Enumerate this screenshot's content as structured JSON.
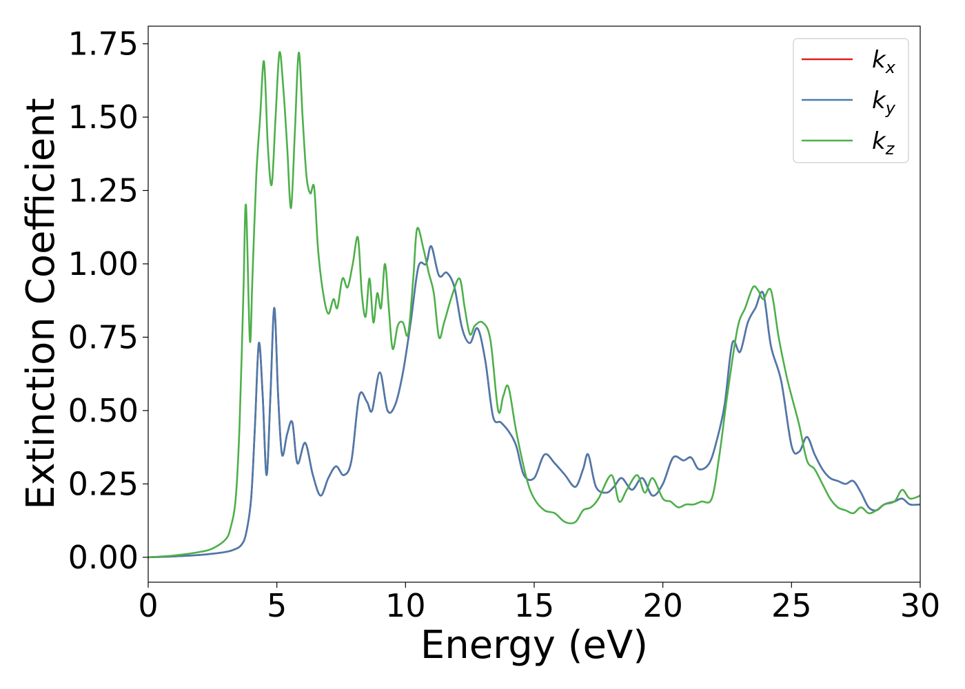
{
  "chart_data": {
    "type": "line",
    "title": "",
    "xlabel": "Energy (eV)",
    "ylabel": "Extinction Coefficient",
    "xlim": [
      0,
      30
    ],
    "ylim": [
      -0.085,
      1.81
    ],
    "xticks": [
      0,
      5,
      10,
      15,
      20,
      25,
      30
    ],
    "xtick_labels": [
      "0",
      "5",
      "10",
      "15",
      "20",
      "25",
      "30"
    ],
    "yticks": [
      0,
      0.25,
      0.5,
      0.75,
      1.0,
      1.25,
      1.5,
      1.75
    ],
    "ytick_labels": [
      "0.00",
      "0.25",
      "0.50",
      "0.75",
      "1.00",
      "1.25",
      "1.50",
      "1.75"
    ],
    "grid": false,
    "legend_position": "top-right",
    "series": [
      {
        "name": "k_x",
        "label_main": "k",
        "label_sub": "x",
        "color": "#e41a1c",
        "x": [
          0,
          1,
          2,
          2.5,
          3,
          3.3,
          3.6,
          3.8,
          4.0,
          4.15,
          4.3,
          4.45,
          4.6,
          4.75,
          4.9,
          5.05,
          5.2,
          5.4,
          5.6,
          5.8,
          6.1,
          6.4,
          6.7,
          7.0,
          7.3,
          7.6,
          7.9,
          8.2,
          8.5,
          8.7,
          9.0,
          9.3,
          9.6,
          9.9,
          10.2,
          10.5,
          10.8,
          11.0,
          11.3,
          11.6,
          11.9,
          12.2,
          12.5,
          12.8,
          13.1,
          13.4,
          13.7,
          14.0,
          14.3,
          14.6,
          15.0,
          15.4,
          15.8,
          16.2,
          16.6,
          16.9,
          17.1,
          17.4,
          17.8,
          18.1,
          18.4,
          18.8,
          19.2,
          19.6,
          20.0,
          20.4,
          20.8,
          21.1,
          21.4,
          21.8,
          22.1,
          22.4,
          22.7,
          23.0,
          23.3,
          23.6,
          23.9,
          24.2,
          24.6,
          25.0,
          25.3,
          25.6,
          25.9,
          26.2,
          26.5,
          26.8,
          27.1,
          27.4,
          27.7,
          28.0,
          28.3,
          28.6,
          29.0,
          29.3,
          29.6,
          30.0
        ],
        "y": [
          0.0,
          0.003,
          0.008,
          0.012,
          0.018,
          0.025,
          0.04,
          0.08,
          0.2,
          0.45,
          0.73,
          0.55,
          0.28,
          0.55,
          0.85,
          0.55,
          0.35,
          0.42,
          0.46,
          0.32,
          0.39,
          0.28,
          0.21,
          0.27,
          0.31,
          0.28,
          0.33,
          0.55,
          0.53,
          0.5,
          0.63,
          0.5,
          0.52,
          0.63,
          0.8,
          0.99,
          1.0,
          1.06,
          0.96,
          0.97,
          0.92,
          0.78,
          0.73,
          0.78,
          0.67,
          0.48,
          0.46,
          0.43,
          0.38,
          0.28,
          0.27,
          0.35,
          0.32,
          0.28,
          0.24,
          0.3,
          0.35,
          0.24,
          0.22,
          0.24,
          0.27,
          0.23,
          0.27,
          0.21,
          0.25,
          0.34,
          0.33,
          0.34,
          0.3,
          0.32,
          0.4,
          0.52,
          0.73,
          0.7,
          0.8,
          0.85,
          0.9,
          0.72,
          0.6,
          0.38,
          0.36,
          0.41,
          0.35,
          0.3,
          0.27,
          0.26,
          0.25,
          0.26,
          0.22,
          0.17,
          0.16,
          0.18,
          0.19,
          0.2,
          0.18,
          0.18
        ]
      },
      {
        "name": "k_y",
        "label_main": "k",
        "label_sub": "y",
        "color": "#4a7aad",
        "x": [
          0,
          1,
          2,
          2.5,
          3,
          3.3,
          3.6,
          3.8,
          4.0,
          4.15,
          4.3,
          4.45,
          4.6,
          4.75,
          4.9,
          5.05,
          5.2,
          5.4,
          5.6,
          5.8,
          6.1,
          6.4,
          6.7,
          7.0,
          7.3,
          7.6,
          7.9,
          8.2,
          8.5,
          8.7,
          9.0,
          9.3,
          9.6,
          9.9,
          10.2,
          10.5,
          10.8,
          11.0,
          11.3,
          11.6,
          11.9,
          12.2,
          12.5,
          12.8,
          13.1,
          13.4,
          13.7,
          14.0,
          14.3,
          14.6,
          15.0,
          15.4,
          15.8,
          16.2,
          16.6,
          16.9,
          17.1,
          17.4,
          17.8,
          18.1,
          18.4,
          18.8,
          19.2,
          19.6,
          20.0,
          20.4,
          20.8,
          21.1,
          21.4,
          21.8,
          22.1,
          22.4,
          22.7,
          23.0,
          23.3,
          23.6,
          23.9,
          24.2,
          24.6,
          25.0,
          25.3,
          25.6,
          25.9,
          26.2,
          26.5,
          26.8,
          27.1,
          27.4,
          27.7,
          28.0,
          28.3,
          28.6,
          29.0,
          29.3,
          29.6,
          30.0
        ],
        "y": [
          0.0,
          0.003,
          0.008,
          0.012,
          0.018,
          0.025,
          0.04,
          0.08,
          0.2,
          0.45,
          0.73,
          0.55,
          0.28,
          0.55,
          0.85,
          0.55,
          0.35,
          0.42,
          0.46,
          0.32,
          0.39,
          0.28,
          0.21,
          0.27,
          0.31,
          0.28,
          0.33,
          0.55,
          0.53,
          0.5,
          0.63,
          0.5,
          0.52,
          0.63,
          0.8,
          0.99,
          1.0,
          1.06,
          0.96,
          0.97,
          0.92,
          0.78,
          0.73,
          0.78,
          0.67,
          0.48,
          0.46,
          0.43,
          0.38,
          0.28,
          0.27,
          0.35,
          0.32,
          0.28,
          0.24,
          0.3,
          0.35,
          0.24,
          0.22,
          0.24,
          0.27,
          0.23,
          0.27,
          0.21,
          0.25,
          0.34,
          0.33,
          0.34,
          0.3,
          0.32,
          0.4,
          0.52,
          0.73,
          0.7,
          0.8,
          0.85,
          0.9,
          0.72,
          0.6,
          0.38,
          0.36,
          0.41,
          0.35,
          0.3,
          0.27,
          0.26,
          0.25,
          0.26,
          0.22,
          0.17,
          0.16,
          0.18,
          0.19,
          0.2,
          0.18,
          0.18
        ]
      },
      {
        "name": "k_z",
        "label_main": "k",
        "label_sub": "z",
        "color": "#4daf4a",
        "x": [
          0,
          1,
          2,
          2.5,
          3,
          3.2,
          3.4,
          3.55,
          3.7,
          3.8,
          3.95,
          4.05,
          4.2,
          4.35,
          4.5,
          4.65,
          4.8,
          4.95,
          5.1,
          5.25,
          5.4,
          5.55,
          5.7,
          5.85,
          6.0,
          6.15,
          6.3,
          6.45,
          6.6,
          6.8,
          7.0,
          7.2,
          7.35,
          7.55,
          7.75,
          7.95,
          8.15,
          8.3,
          8.45,
          8.6,
          8.75,
          8.9,
          9.05,
          9.2,
          9.35,
          9.5,
          9.7,
          9.9,
          10.1,
          10.3,
          10.45,
          10.7,
          10.9,
          11.1,
          11.3,
          11.5,
          11.8,
          12.1,
          12.3,
          12.5,
          12.7,
          13.0,
          13.3,
          13.6,
          13.8,
          14.0,
          14.3,
          14.7,
          15.0,
          15.4,
          15.8,
          16.2,
          16.6,
          16.9,
          17.2,
          17.5,
          18.0,
          18.3,
          18.6,
          19.0,
          19.3,
          19.6,
          20.0,
          20.3,
          20.6,
          20.9,
          21.2,
          21.5,
          21.9,
          22.2,
          22.5,
          22.9,
          23.2,
          23.5,
          23.7,
          23.9,
          24.2,
          24.5,
          24.8,
          25.0,
          25.3,
          25.6,
          25.9,
          26.2,
          26.5,
          26.8,
          27.1,
          27.4,
          27.7,
          28.0,
          28.3,
          28.6,
          29.0,
          29.3,
          29.6,
          30.0
        ],
        "y": [
          0.0,
          0.006,
          0.018,
          0.03,
          0.06,
          0.1,
          0.2,
          0.45,
          0.9,
          1.2,
          0.74,
          0.95,
          1.3,
          1.5,
          1.69,
          1.4,
          1.27,
          1.5,
          1.72,
          1.6,
          1.4,
          1.19,
          1.45,
          1.72,
          1.5,
          1.3,
          1.24,
          1.26,
          1.05,
          0.9,
          0.83,
          0.88,
          0.85,
          0.95,
          0.92,
          1.0,
          1.09,
          0.9,
          0.82,
          0.95,
          0.8,
          0.9,
          0.85,
          1.0,
          0.85,
          0.71,
          0.79,
          0.8,
          0.76,
          0.95,
          1.12,
          1.05,
          0.97,
          0.9,
          0.75,
          0.8,
          0.89,
          0.95,
          0.85,
          0.76,
          0.79,
          0.8,
          0.74,
          0.5,
          0.55,
          0.58,
          0.43,
          0.27,
          0.2,
          0.16,
          0.15,
          0.12,
          0.12,
          0.16,
          0.17,
          0.2,
          0.28,
          0.19,
          0.23,
          0.28,
          0.22,
          0.27,
          0.2,
          0.19,
          0.17,
          0.18,
          0.18,
          0.19,
          0.2,
          0.35,
          0.55,
          0.78,
          0.85,
          0.92,
          0.91,
          0.88,
          0.91,
          0.75,
          0.62,
          0.55,
          0.45,
          0.33,
          0.3,
          0.25,
          0.2,
          0.17,
          0.16,
          0.15,
          0.17,
          0.15,
          0.16,
          0.18,
          0.19,
          0.23,
          0.2,
          0.21
        ]
      }
    ]
  }
}
